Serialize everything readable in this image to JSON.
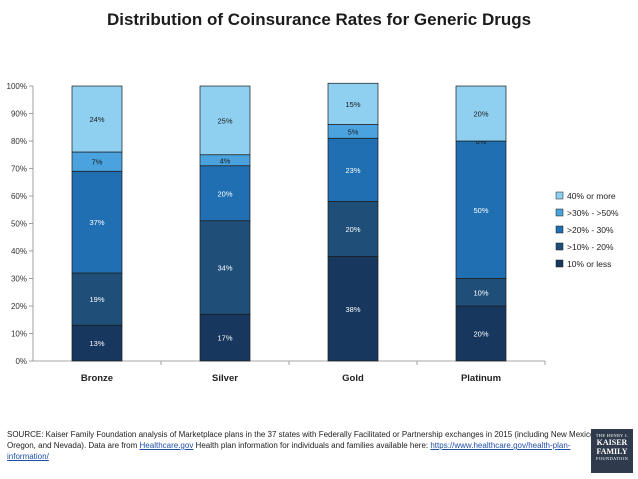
{
  "chart_data": {
    "type": "bar",
    "stacked": true,
    "title": "Distribution of Coinsurance Rates for Generic Drugs",
    "categories": [
      "Bronze",
      "Silver",
      "Gold",
      "Platinum"
    ],
    "ylim": [
      0,
      100
    ],
    "yticks": [
      "0%",
      "10%",
      "20%",
      "30%",
      "40%",
      "50%",
      "60%",
      "70%",
      "80%",
      "90%",
      "100%"
    ],
    "legend_position": "right",
    "grid": false,
    "series": [
      {
        "name": "10% or less",
        "color": "#17375e",
        "label_color": "#ffffff",
        "values": [
          13,
          17,
          38,
          20
        ],
        "labels": [
          "13%",
          "17%",
          "38%",
          "20%"
        ]
      },
      {
        "name": ">10% - 20%",
        "color": "#1f4e79",
        "label_color": "#ffffff",
        "values": [
          19,
          34,
          20,
          10
        ],
        "labels": [
          "19%",
          "34%",
          "20%",
          "10%"
        ]
      },
      {
        "name": ">20% - 30%",
        "color": "#1f6fb2",
        "label_color": "#ffffff",
        "values": [
          37,
          20,
          23,
          50
        ],
        "labels": [
          "37%",
          "20%",
          "23%",
          "50%"
        ]
      },
      {
        "name": ">30% - >50%",
        "color": "#4aa3df",
        "label_color": "#1a1a1a",
        "values": [
          7,
          4,
          5,
          0
        ],
        "labels": [
          "7%",
          "4%",
          "5%",
          "0%"
        ]
      },
      {
        "name": "40% or more",
        "color": "#8fcff0",
        "label_color": "#1a1a1a",
        "values": [
          24,
          25,
          15,
          20
        ],
        "labels": [
          "24%",
          "25%",
          "15%",
          "20%"
        ]
      }
    ]
  },
  "source": {
    "text_before": "SOURCE: Kaiser Family Foundation analysis of Marketplace plans in the 37 states with Federally Facilitated or Partnership exchanges in 2015 (including New Mexico, Oregon, and Nevada). Data are from ",
    "link1": "Healthcare.gov",
    "text_after": " Health plan information for individuals and families available here: ",
    "link2": "https://www.healthcare.gov/health-plan-information/"
  },
  "logo": {
    "line1": "THE HENRY J.",
    "line2": "KAISER",
    "line3": "FAMILY",
    "line4": "FOUNDATION"
  }
}
